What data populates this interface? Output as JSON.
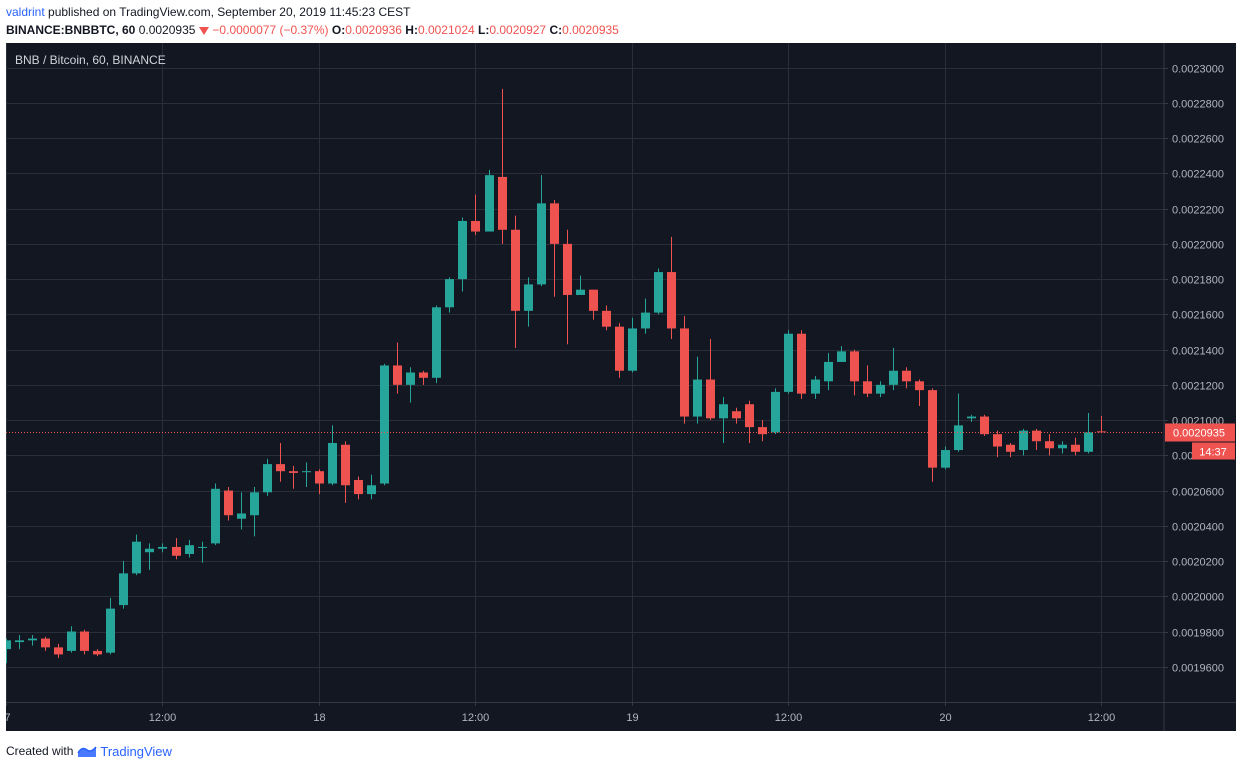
{
  "header": {
    "author": "valdrint",
    "published_text": "published on TradingView.com, September 20, 2019 11:45:23 CEST",
    "symbol": "BINANCE:BNBBTC, 60",
    "last_price": "0.0020935",
    "change": "−0.0000077 (−0.37%)",
    "open_label": "O:",
    "open_value": "0.0020936",
    "high_label": "H:",
    "high_value": "0.0021024",
    "low_label": "L:",
    "low_value": "0.0020927",
    "close_label": "C:",
    "close_value": "0.0020935"
  },
  "footer": {
    "created_with": "Created with",
    "brand": "TradingView"
  },
  "colors": {
    "background": "#131722",
    "grid": "#2a2e39",
    "up": "#26a69a",
    "down": "#ef5350",
    "axis_text": "#b2b5be"
  },
  "chart_data": {
    "type": "candlestick",
    "title": "BNB / Bitcoin, 60, BINANCE",
    "y_ticks": [
      "0.0019600",
      "0.0019800",
      "0.0020000",
      "0.0020200",
      "0.0020400",
      "0.0020600",
      "0.0020800",
      "0.0021000",
      "0.0021200",
      "0.0021400",
      "0.0021600",
      "0.0021800",
      "0.0022000",
      "0.0022200",
      "0.0022400",
      "0.0022600",
      "0.0022800",
      "0.0023000"
    ],
    "y_tick_values": [
      0.00196,
      0.00198,
      0.002,
      0.00202,
      0.00204,
      0.00206,
      0.00208,
      0.0021,
      0.00212,
      0.00214,
      0.00216,
      0.00218,
      0.0022,
      0.00222,
      0.00224,
      0.00226,
      0.00228,
      0.0023
    ],
    "ylim": [
      0.00194,
      0.002314
    ],
    "x_ticks": [
      {
        "label": "7",
        "hour": 0
      },
      {
        "label": "12:00",
        "hour": 12
      },
      {
        "label": "18",
        "hour": 24
      },
      {
        "label": "12:00",
        "hour": 36
      },
      {
        "label": "19",
        "hour": 48
      },
      {
        "label": "12:00",
        "hour": 60
      },
      {
        "label": "20",
        "hour": 72
      },
      {
        "label": "12:00",
        "hour": 84
      }
    ],
    "xlim_hours": [
      0,
      88.8
    ],
    "current_price": {
      "label": "0.0020935",
      "value": 0.0020935
    },
    "countdown": "14:37",
    "candles": [
      [
        0.00197,
        0.001975,
        0.001976,
        0.001962
      ],
      [
        0.001974,
        0.001975,
        0.001978,
        0.00197
      ],
      [
        0.001975,
        0.001976,
        0.001978,
        0.001972
      ],
      [
        0.001976,
        0.001971,
        0.001977,
        0.001969
      ],
      [
        0.001971,
        0.001967,
        0.001973,
        0.001965
      ],
      [
        0.001969,
        0.00198,
        0.001983,
        0.001968
      ],
      [
        0.00198,
        0.001969,
        0.001981,
        0.001967
      ],
      [
        0.001969,
        0.001967,
        0.00197,
        0.001966
      ],
      [
        0.001968,
        0.001993,
        0.001999,
        0.001967
      ],
      [
        0.001995,
        0.002013,
        0.00202,
        0.001993
      ],
      [
        0.002013,
        0.002031,
        0.002035,
        0.002012
      ],
      [
        0.002025,
        0.002027,
        0.00203,
        0.002015
      ],
      [
        0.002027,
        0.002028,
        0.00203,
        0.002025
      ],
      [
        0.002028,
        0.002023,
        0.002033,
        0.002021
      ],
      [
        0.002024,
        0.002029,
        0.002032,
        0.002022
      ],
      [
        0.002028,
        0.002028,
        0.002031,
        0.002019
      ],
      [
        0.00203,
        0.002061,
        0.002064,
        0.002029
      ],
      [
        0.00206,
        0.002046,
        0.002062,
        0.002043
      ],
      [
        0.002044,
        0.002047,
        0.002059,
        0.002038
      ],
      [
        0.002046,
        0.002059,
        0.002062,
        0.002034
      ],
      [
        0.002059,
        0.002075,
        0.002078,
        0.002057
      ],
      [
        0.002075,
        0.002071,
        0.002087,
        0.002065
      ],
      [
        0.002071,
        0.00207,
        0.002074,
        0.002061
      ],
      [
        0.002071,
        0.002071,
        0.002076,
        0.002062
      ],
      [
        0.002071,
        0.002064,
        0.002072,
        0.002058
      ],
      [
        0.002064,
        0.002087,
        0.002097,
        0.002063
      ],
      [
        0.002086,
        0.002063,
        0.002088,
        0.002053
      ],
      [
        0.002066,
        0.002058,
        0.002068,
        0.002055
      ],
      [
        0.002058,
        0.002063,
        0.002069,
        0.002055
      ],
      [
        0.002064,
        0.002131,
        0.002132,
        0.002063
      ],
      [
        0.002131,
        0.00212,
        0.002144,
        0.002115
      ],
      [
        0.00212,
        0.002127,
        0.00213,
        0.00211
      ],
      [
        0.002127,
        0.002124,
        0.002128,
        0.00212
      ],
      [
        0.002124,
        0.002164,
        0.002165,
        0.002121
      ],
      [
        0.002164,
        0.00218,
        0.002181,
        0.002161
      ],
      [
        0.00218,
        0.002213,
        0.002215,
        0.002173
      ],
      [
        0.002213,
        0.002207,
        0.002228,
        0.002205
      ],
      [
        0.002207,
        0.002239,
        0.002242,
        0.002207
      ],
      [
        0.002238,
        0.002208,
        0.002288,
        0.0022
      ],
      [
        0.002208,
        0.002162,
        0.002216,
        0.002141
      ],
      [
        0.002162,
        0.002177,
        0.002181,
        0.002153
      ],
      [
        0.002177,
        0.002223,
        0.002239,
        0.002176
      ],
      [
        0.002223,
        0.0022,
        0.002225,
        0.00217
      ],
      [
        0.0022,
        0.002171,
        0.002208,
        0.002143
      ],
      [
        0.002171,
        0.002174,
        0.002182,
        0.002171
      ],
      [
        0.002174,
        0.002162,
        0.002174,
        0.002157
      ],
      [
        0.002162,
        0.002153,
        0.002165,
        0.002151
      ],
      [
        0.002153,
        0.002128,
        0.002155,
        0.002124
      ],
      [
        0.002128,
        0.002152,
        0.002158,
        0.002127
      ],
      [
        0.002152,
        0.002161,
        0.002169,
        0.002149
      ],
      [
        0.002161,
        0.002184,
        0.002186,
        0.00216
      ],
      [
        0.002184,
        0.002152,
        0.002204,
        0.002146
      ],
      [
        0.002152,
        0.002102,
        0.002159,
        0.002098
      ],
      [
        0.002102,
        0.002123,
        0.002136,
        0.002098
      ],
      [
        0.002123,
        0.002101,
        0.002146,
        0.0021
      ],
      [
        0.002101,
        0.002109,
        0.002113,
        0.002087
      ],
      [
        0.002105,
        0.002101,
        0.002107,
        0.002098
      ],
      [
        0.002109,
        0.002096,
        0.002111,
        0.002087
      ],
      [
        0.002096,
        0.002092,
        0.0021,
        0.002088
      ],
      [
        0.002093,
        0.002116,
        0.002118,
        0.002092
      ],
      [
        0.002116,
        0.002149,
        0.002151,
        0.002115
      ],
      [
        0.002149,
        0.002115,
        0.002151,
        0.002112
      ],
      [
        0.002115,
        0.002123,
        0.002125,
        0.002112
      ],
      [
        0.002122,
        0.002133,
        0.002138,
        0.002117
      ],
      [
        0.002133,
        0.002139,
        0.002142,
        0.002133
      ],
      [
        0.002139,
        0.002122,
        0.00214,
        0.002114
      ],
      [
        0.002122,
        0.002115,
        0.002131,
        0.002113
      ],
      [
        0.002115,
        0.00212,
        0.002122,
        0.002113
      ],
      [
        0.00212,
        0.002128,
        0.002141,
        0.002117
      ],
      [
        0.002128,
        0.002122,
        0.00213,
        0.002118
      ],
      [
        0.002122,
        0.002117,
        0.002123,
        0.002108
      ],
      [
        0.002117,
        0.002073,
        0.002118,
        0.002065
      ],
      [
        0.002073,
        0.002083,
        0.002085,
        0.002072
      ],
      [
        0.002083,
        0.002097,
        0.002115,
        0.002082
      ],
      [
        0.002101,
        0.002102,
        0.002103,
        0.002099
      ],
      [
        0.002102,
        0.002092,
        0.002103,
        0.002091
      ],
      [
        0.002092,
        0.002085,
        0.002094,
        0.002079
      ],
      [
        0.002086,
        0.002082,
        0.002087,
        0.002079
      ],
      [
        0.002083,
        0.002094,
        0.002095,
        0.00208
      ],
      [
        0.002094,
        0.002088,
        0.002095,
        0.002083
      ],
      [
        0.002088,
        0.002084,
        0.002092,
        0.00208
      ],
      [
        0.002084,
        0.002086,
        0.002088,
        0.002081
      ],
      [
        0.002086,
        0.002082,
        0.00209,
        0.00208
      ],
      [
        0.002082,
        0.002093,
        0.002104,
        0.002081
      ],
      [
        0.0020936,
        0.0020935,
        0.0021024,
        0.0020927
      ]
    ]
  }
}
